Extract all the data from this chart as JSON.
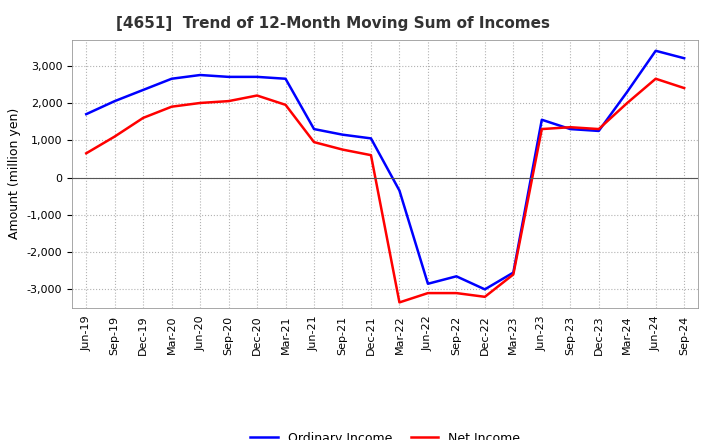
{
  "title": "[4651]  Trend of 12-Month Moving Sum of Incomes",
  "ylabel": "Amount (million yen)",
  "x_labels": [
    "Jun-19",
    "Sep-19",
    "Dec-19",
    "Mar-20",
    "Jun-20",
    "Sep-20",
    "Dec-20",
    "Mar-21",
    "Jun-21",
    "Sep-21",
    "Dec-21",
    "Mar-22",
    "Jun-22",
    "Sep-22",
    "Dec-22",
    "Mar-23",
    "Jun-23",
    "Sep-23",
    "Dec-23",
    "Mar-24",
    "Jun-24",
    "Sep-24"
  ],
  "ordinary_income": [
    1700,
    2050,
    2350,
    2650,
    2750,
    2700,
    2700,
    2650,
    1300,
    1150,
    1050,
    -350,
    -2850,
    -2650,
    -3000,
    -2550,
    1550,
    1300,
    1250,
    2300,
    3400,
    3200
  ],
  "net_income": [
    650,
    1100,
    1600,
    1900,
    2000,
    2050,
    2200,
    1950,
    950,
    750,
    600,
    -3350,
    -3100,
    -3100,
    -3200,
    -2600,
    1300,
    1350,
    1300,
    2000,
    2650,
    2400
  ],
  "ordinary_income_color": "#0000FF",
  "net_income_color": "#FF0000",
  "ylim": [
    -3500,
    3700
  ],
  "yticks": [
    -3000,
    -2000,
    -1000,
    0,
    1000,
    2000,
    3000
  ],
  "background_color": "#FFFFFF",
  "grid_color": "#AAAAAA",
  "title_fontsize": 11,
  "ylabel_fontsize": 9,
  "tick_fontsize": 8,
  "legend_fontsize": 9,
  "legend_labels": [
    "Ordinary Income",
    "Net Income"
  ]
}
